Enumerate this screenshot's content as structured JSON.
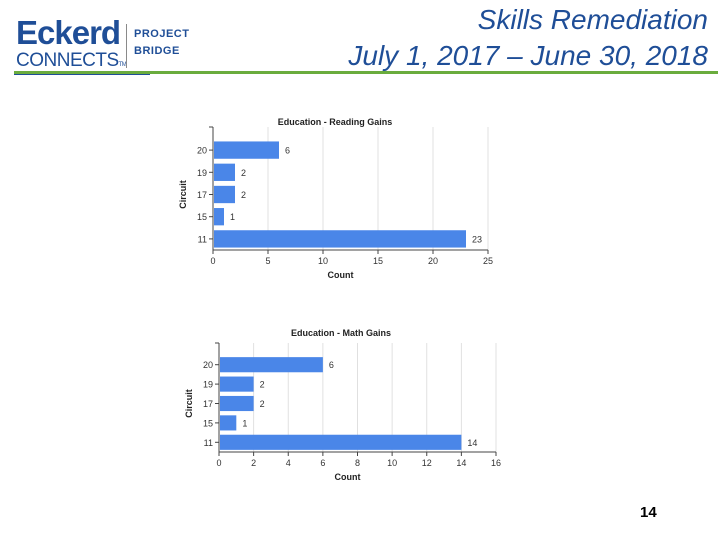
{
  "header": {
    "logo": {
      "brand_text": "Eckerd",
      "sub_text": "CONNECTS",
      "tm": "TM",
      "project_line1": "PROJECT",
      "project_line2": "BRIDGE",
      "colors": {
        "brand_blue": "#1f4e97",
        "brand_green": "#6aac3d"
      }
    },
    "title_line1": "Skills Remediation",
    "title_line2": "July 1, 2017 – June 30, 2018"
  },
  "page_number": "14",
  "chart_data": [
    {
      "type": "bar",
      "orientation": "horizontal",
      "title": "Education - Reading Gains",
      "xlabel": "Count",
      "ylabel": "Circuit",
      "categories": [
        "20",
        "19",
        "17",
        "15",
        "11"
      ],
      "values": [
        6,
        2,
        2,
        1,
        23
      ],
      "data_labels": [
        "6",
        "2",
        "2",
        "1",
        "23"
      ],
      "xlim": [
        0,
        25
      ],
      "xticks": [
        0,
        5,
        10,
        15,
        20,
        25
      ],
      "grid": "vertical",
      "bar_color": "#4a86e8"
    },
    {
      "type": "bar",
      "orientation": "horizontal",
      "title": "Education - Math Gains",
      "xlabel": "Count",
      "ylabel": "Circuit",
      "categories": [
        "20",
        "19",
        "17",
        "15",
        "11"
      ],
      "values": [
        6,
        2,
        2,
        1,
        14
      ],
      "data_labels": [
        "6",
        "2",
        "2",
        "1",
        "14"
      ],
      "xlim": [
        0,
        16
      ],
      "xticks": [
        0,
        2,
        4,
        6,
        8,
        10,
        12,
        14,
        16
      ],
      "grid": "vertical",
      "bar_color": "#4a86e8"
    }
  ]
}
